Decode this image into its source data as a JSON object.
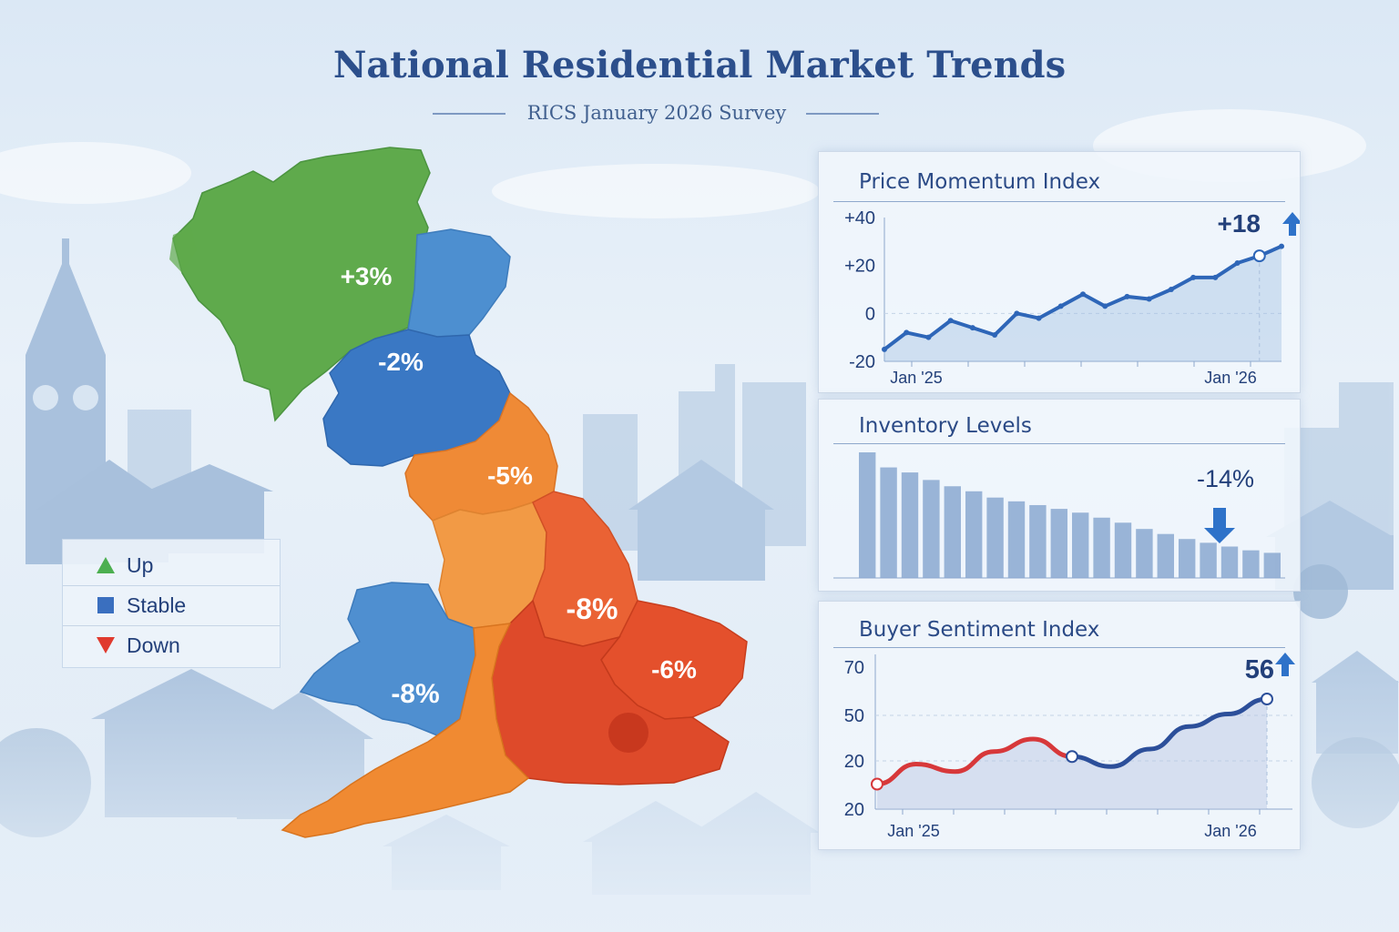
{
  "header": {
    "title": "National Residential Market Trends",
    "subtitle": "RICS January 2026 Survey"
  },
  "colors": {
    "up": "#4caf50",
    "stable": "#3a78c4",
    "down": "#e03a2e",
    "accent": "#2e66b8",
    "title": "#2c4f8c"
  },
  "map": {
    "regions": [
      {
        "label": "+3%",
        "trend": "up"
      },
      {
        "label": "-2%",
        "trend": "stable"
      },
      {
        "label": "-5%",
        "trend": "down"
      },
      {
        "label": "-8%",
        "trend": "down"
      },
      {
        "label": "-6%",
        "trend": "down"
      },
      {
        "label": "-8%",
        "trend": "stable"
      }
    ]
  },
  "legend": {
    "items": [
      {
        "label": "Up",
        "icon": "triangle-up-icon",
        "color": "#4caf50"
      },
      {
        "label": "Stable",
        "icon": "square-icon",
        "color": "#3a6fbf"
      },
      {
        "label": "Down",
        "icon": "triangle-down-icon",
        "color": "#e03a2e"
      }
    ]
  },
  "chart_data": [
    {
      "type": "line",
      "title": "Price Momentum Index",
      "yticks": [
        "+40",
        "+20",
        "0",
        "-20"
      ],
      "ylim": [
        -20,
        40
      ],
      "xticks": [
        "Jan '25",
        "Jan '26"
      ],
      "values": [
        -15,
        -8,
        -10,
        -3,
        -6,
        -9,
        0,
        -2,
        3,
        8,
        3,
        7,
        6,
        10,
        15,
        15,
        21,
        24,
        28
      ],
      "callout": "+18",
      "callout_direction": "up"
    },
    {
      "type": "bar",
      "title": "Inventory Levels",
      "values": [
        100,
        88,
        84,
        78,
        73,
        69,
        64,
        61,
        58,
        55,
        52,
        48,
        44,
        39,
        35,
        31,
        28,
        25,
        22,
        20
      ],
      "callout": "-14%",
      "callout_direction": "down"
    },
    {
      "type": "line",
      "title": "Buyer Sentiment Index",
      "yticks": [
        "70",
        "50",
        "20",
        "20"
      ],
      "xticks": [
        "Jan '25",
        "Jan '26"
      ],
      "values": [
        22,
        30,
        27,
        35,
        40,
        33,
        29,
        36,
        45,
        50,
        56
      ],
      "callout": "56",
      "callout_direction": "up"
    }
  ]
}
